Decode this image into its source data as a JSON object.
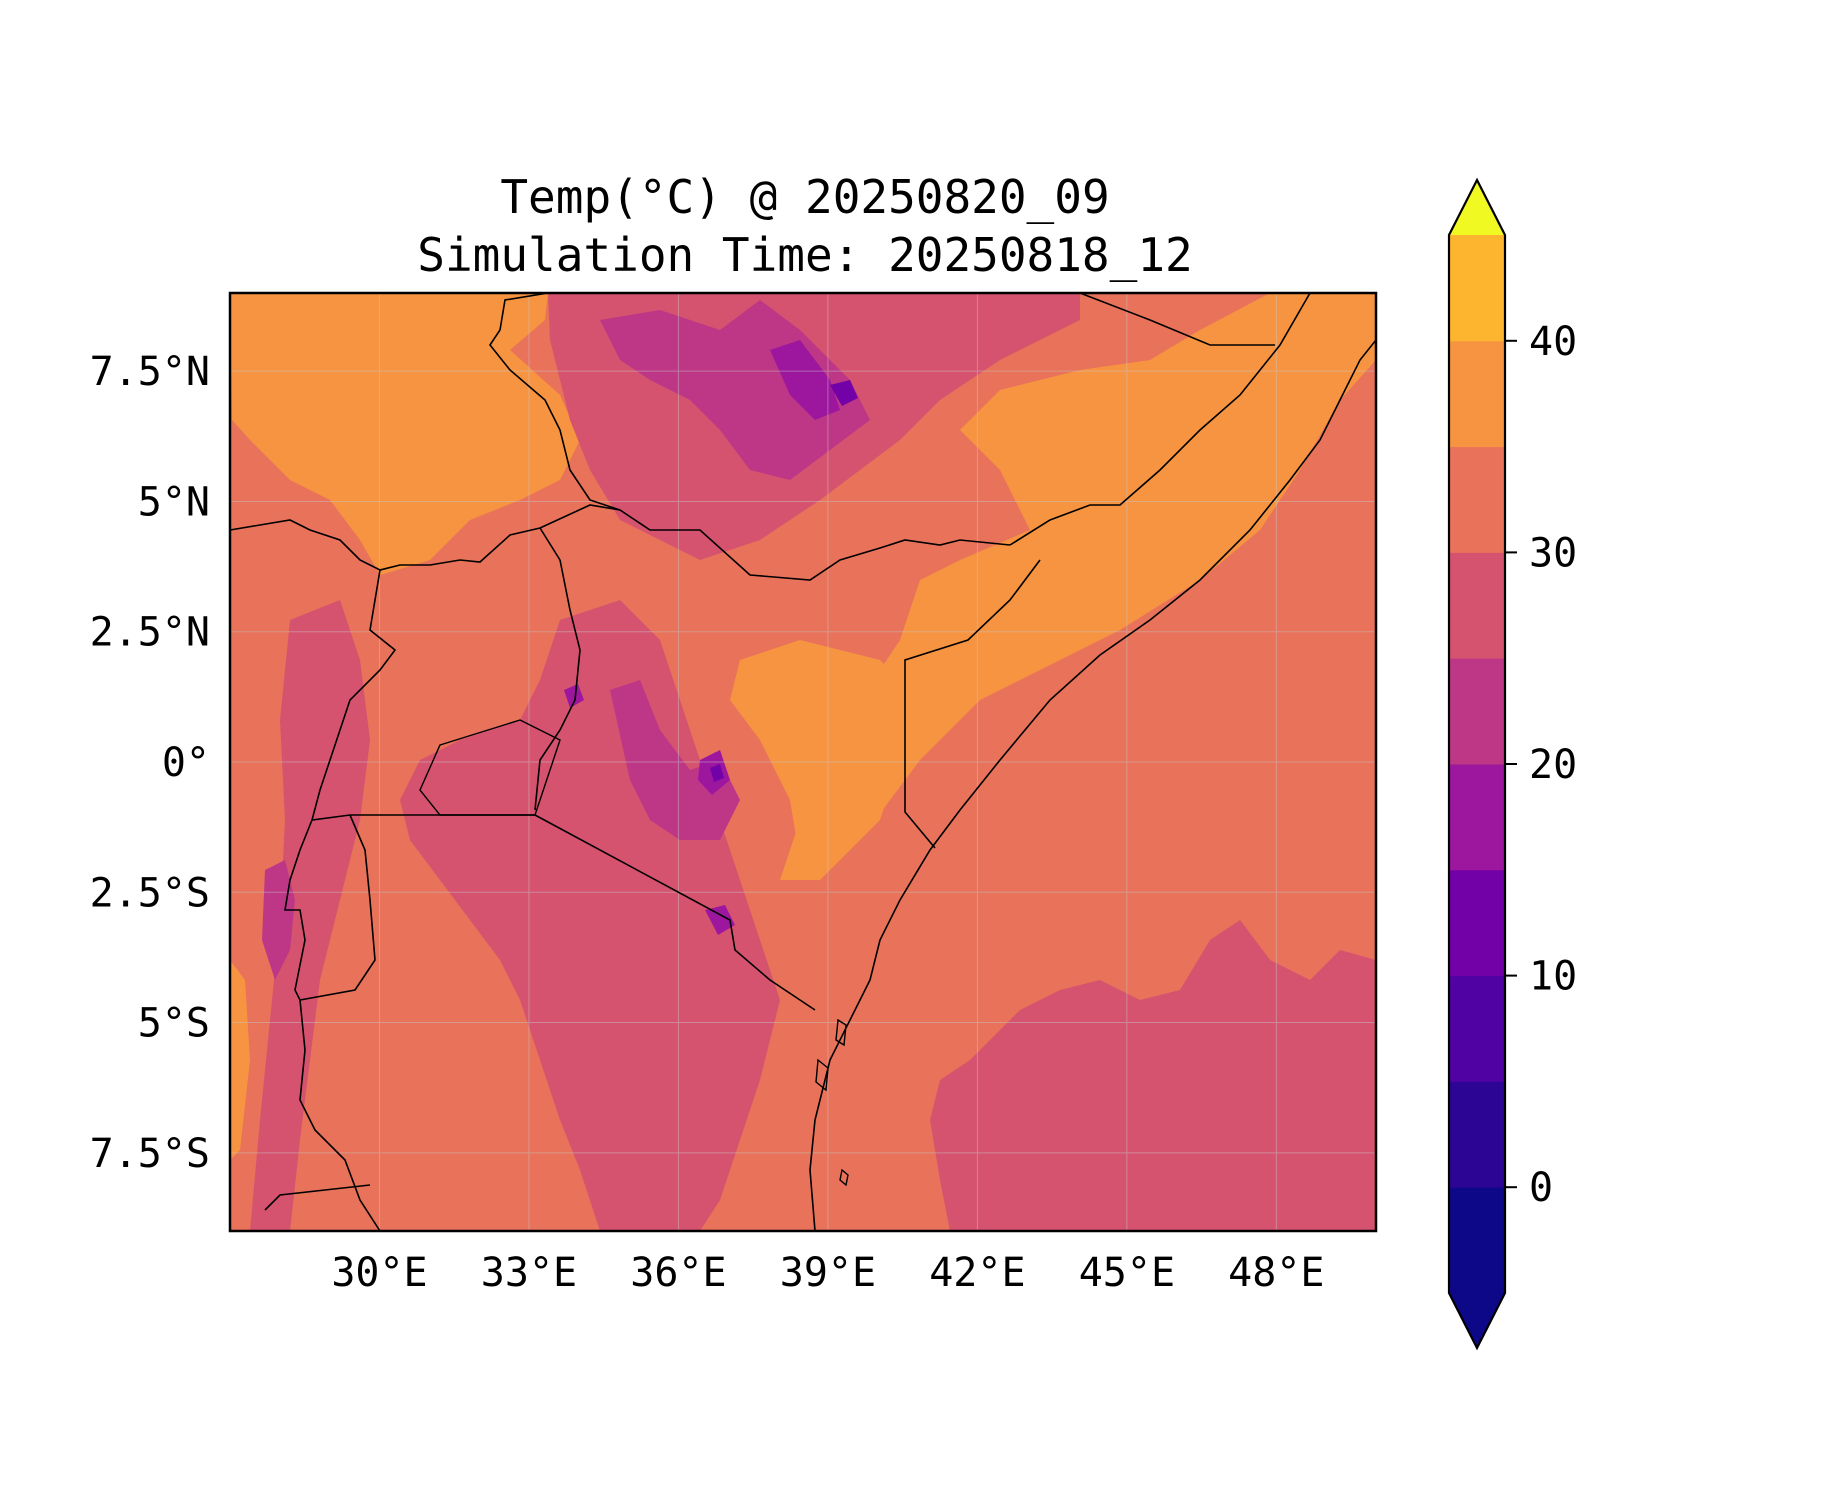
{
  "title": {
    "line1": "Temp(°C) @ 20250820_09",
    "line2": "Simulation Time: 20250818_12"
  },
  "map": {
    "projection": "PlateCarree",
    "lon_range": [
      27,
      50
    ],
    "lat_range": [
      -9,
      9
    ],
    "x_ticks": [
      {
        "value": 30,
        "label": "30°E"
      },
      {
        "value": 33,
        "label": "33°E"
      },
      {
        "value": 36,
        "label": "36°E"
      },
      {
        "value": 39,
        "label": "39°E"
      },
      {
        "value": 42,
        "label": "42°E"
      },
      {
        "value": 45,
        "label": "45°E"
      },
      {
        "value": 48,
        "label": "48°E"
      }
    ],
    "y_ticks": [
      {
        "value": 7.5,
        "label": "7.5°N"
      },
      {
        "value": 5,
        "label": "5°N"
      },
      {
        "value": 2.5,
        "label": "2.5°N"
      },
      {
        "value": 0,
        "label": "0°"
      },
      {
        "value": -2.5,
        "label": "2.5°S"
      },
      {
        "value": -5,
        "label": "5°S"
      },
      {
        "value": -7.5,
        "label": "7.5°S"
      }
    ],
    "gridlines": true,
    "features": [
      "coastlines",
      "country borders"
    ]
  },
  "colorbar": {
    "colormap": "plasma",
    "orientation": "vertical",
    "extend": "both",
    "levels": [
      -5,
      0,
      5,
      10,
      15,
      20,
      25,
      30,
      35,
      40,
      45
    ],
    "colors": [
      "#0d0887",
      "#2c0594",
      "#5002a2",
      "#7201a8",
      "#9c179e",
      "#bd3786",
      "#d5536f",
      "#e8725a",
      "#f79441",
      "#fdb42f",
      "#f0f921"
    ],
    "under_color": "#0d0887",
    "over_color": "#f0f921",
    "ticks": [
      {
        "value": 0,
        "label": "0"
      },
      {
        "value": 10,
        "label": "10"
      },
      {
        "value": 20,
        "label": "20"
      },
      {
        "value": 30,
        "label": "30"
      },
      {
        "value": 40,
        "label": "40"
      }
    ]
  }
}
